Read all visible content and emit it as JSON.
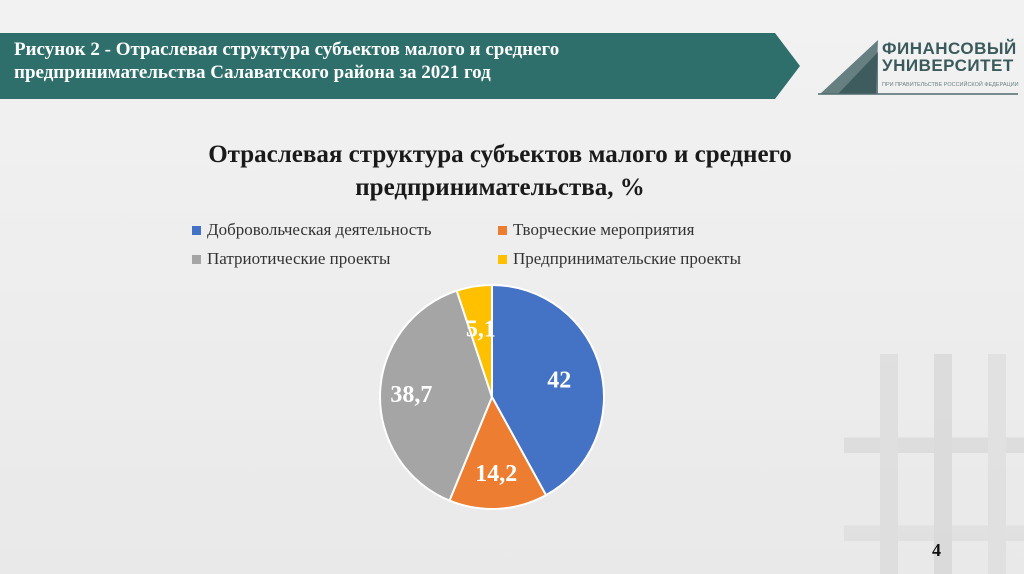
{
  "header": {
    "title_line1": "Рисунок 2 - Отраслевая структура субъектов малого и среднего",
    "title_line2": "предпринимательства Салаватского района за 2021 год"
  },
  "logo": {
    "line1": "ФИНАНСОВЫЙ",
    "line2": "УНИВЕРСИТЕТ",
    "sub": "ПРИ ПРАВИТЕЛЬСТВЕ РОССИЙСКОЙ ФЕДЕРАЦИИ"
  },
  "page_number": "4",
  "chart_data": {
    "type": "pie",
    "title_line1": "Отраслевая структура субъектов малого и среднего",
    "title_line2": "предпринимательства, %",
    "legend_placement": "top",
    "categories": [
      "Добровольческая деятельность",
      "Творческие мероприятия",
      "Патриотические проекты",
      "Предпринимательские проекты"
    ],
    "values": [
      42,
      14.2,
      38.7,
      5.1
    ],
    "value_labels": [
      "42",
      "14,2",
      "38,7",
      "5,1"
    ],
    "colors": [
      "#4472c4",
      "#ed7d31",
      "#a5a5a5",
      "#ffc000"
    ]
  }
}
